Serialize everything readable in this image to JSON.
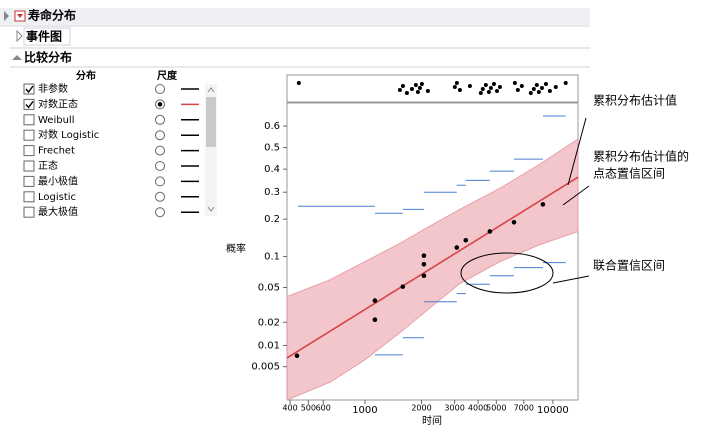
{
  "header": {
    "title": "寿命分布",
    "event_plot": "事件图",
    "compare": "比较分布"
  },
  "list": {
    "col_distribution": "分布",
    "col_scale": "尺度",
    "rows": [
      {
        "name": "非参数",
        "checked": true,
        "selected": false,
        "color": "#000000"
      },
      {
        "name": "对数正态",
        "checked": true,
        "selected": true,
        "color": "#d9434a"
      },
      {
        "name": "Weibull",
        "checked": false,
        "selected": false,
        "color": "#000000"
      },
      {
        "name": "对数 Logistic",
        "checked": false,
        "selected": false,
        "color": "#000000"
      },
      {
        "name": "Frechet",
        "checked": false,
        "selected": false,
        "color": "#000000"
      },
      {
        "name": "正态",
        "checked": false,
        "selected": false,
        "color": "#000000"
      },
      {
        "name": "最小极值",
        "checked": false,
        "selected": false,
        "color": "#000000"
      },
      {
        "name": "Logistic",
        "checked": false,
        "selected": false,
        "color": "#000000"
      },
      {
        "name": "最大极值",
        "checked": false,
        "selected": false,
        "color": "#000000"
      }
    ]
  },
  "chart_data": {
    "type": "probability",
    "x_label": "时间",
    "y_label": "概率",
    "x_log": true,
    "y_scale": "normal-probability",
    "xlim": [
      385,
      13600
    ],
    "ylim": [
      0.0015,
      0.7
    ],
    "xticks": [
      400,
      500,
      600,
      1000,
      2000,
      3000,
      4000,
      5000,
      7000,
      10000
    ],
    "yticks": [
      0.005,
      0.01,
      0.02,
      0.05,
      0.1,
      0.2,
      0.3,
      0.4,
      0.5,
      0.6
    ],
    "top_panel_x": [
      445,
      1535,
      1593,
      1673,
      1779,
      1867,
      1914,
      1961,
      2010,
      2163,
      3010,
      3085,
      3201,
      3619,
      4135,
      4237,
      4398,
      4566,
      4680,
      4858,
      5043,
      5228,
      6275,
      6510,
      6836,
      7625,
      7917,
      8212,
      8419,
      8748,
      9183,
      9641,
      10360,
      11700
    ],
    "points": {
      "color": "#000000",
      "x": [
        435,
        1130,
        1130,
        1590,
        2060,
        2060,
        2060,
        3080,
        3440,
        4620,
        6210,
        8850
      ],
      "values": [
        0.0072,
        0.0215,
        0.036,
        0.051,
        0.066,
        0.085,
        0.102,
        0.12,
        0.138,
        0.162,
        0.19,
        0.252
      ]
    },
    "fit_line": {
      "color": "#d9434a",
      "x": [
        385,
        13600
      ],
      "values": [
        0.0067,
        0.364
      ]
    },
    "band": {
      "color": "#f3c6cb",
      "x": [
        386,
        652,
        1000,
        1535,
        2060,
        3200,
        5225,
        8530,
        13580
      ],
      "upper": [
        0.04,
        0.06,
        0.09,
        0.13,
        0.168,
        0.234,
        0.316,
        0.423,
        0.54
      ],
      "lower": [
        0.0015,
        0.0029,
        0.0063,
        0.0148,
        0.026,
        0.055,
        0.09,
        0.127,
        0.162
      ]
    },
    "simultaneous": {
      "color": "#4a7fd4",
      "bounds_x": [
        441,
        1130,
        1590,
        2060,
        3080,
        3440,
        4620,
        6210,
        8850,
        11700
      ],
      "upper": [
        0.245,
        0.22,
        0.234,
        0.3,
        0.329,
        0.35,
        0.391,
        0.446,
        0.645
      ],
      "lower": [
        null,
        0.0074,
        0.0127,
        0.035,
        0.043,
        0.054,
        0.066,
        0.079,
        0.088
      ]
    },
    "annotations": [
      "累积分布估计值",
      "累积分布估计值的",
      "点态置信区间",
      "联合置信区间"
    ]
  }
}
